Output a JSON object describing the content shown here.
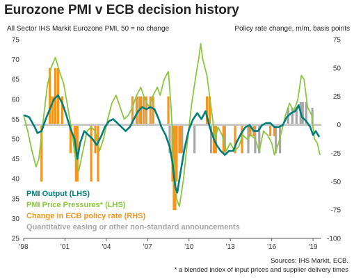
{
  "chart_data": {
    "type": "line",
    "title": "Eurozone PMI v ECB decision history",
    "left_axis_label": "All Sector IHS Markit Eurozone PMI, 50 = no change",
    "right_axis_label": "Policy rate change, m/m, basis points",
    "left_ylim": [
      25,
      75
    ],
    "left_yticks": [
      25,
      30,
      35,
      40,
      45,
      50,
      55,
      60,
      65,
      70,
      75
    ],
    "right_ylim": [
      -100,
      75
    ],
    "right_yticks": [
      -100,
      -75,
      -50,
      -25,
      0,
      25,
      50,
      75
    ],
    "xlim": [
      1998,
      2019.6
    ],
    "x_ticks": [
      {
        "x": 1998,
        "label": "'98"
      },
      {
        "x": 2001,
        "label": "'01"
      },
      {
        "x": 2004,
        "label": "'04"
      },
      {
        "x": 2007,
        "label": "'07"
      },
      {
        "x": 2010,
        "label": "'10"
      },
      {
        "x": 2013,
        "label": "'13"
      },
      {
        "x": 2016,
        "label": "'16"
      },
      {
        "x": 2019,
        "label": "'19"
      }
    ],
    "grid": false,
    "legend_position": "bottom-left",
    "series": [
      {
        "name": "PMI Output (LHS)",
        "axis": "left",
        "color": "#007e7a",
        "points": [
          [
            1998.0,
            56
          ],
          [
            1998.4,
            55.5
          ],
          [
            1998.8,
            53
          ],
          [
            1999.0,
            51.5
          ],
          [
            1999.3,
            52
          ],
          [
            1999.6,
            55
          ],
          [
            1999.9,
            57.5
          ],
          [
            2000.2,
            60
          ],
          [
            2000.5,
            61
          ],
          [
            2000.8,
            59
          ],
          [
            2001.1,
            56
          ],
          [
            2001.4,
            52.5
          ],
          [
            2001.7,
            50
          ],
          [
            2001.9,
            45
          ],
          [
            2002.1,
            49
          ],
          [
            2002.4,
            52
          ],
          [
            2002.7,
            51
          ],
          [
            2003.0,
            50
          ],
          [
            2003.3,
            48.5
          ],
          [
            2003.6,
            50.5
          ],
          [
            2003.9,
            53
          ],
          [
            2004.2,
            54.5
          ],
          [
            2004.5,
            55
          ],
          [
            2004.8,
            54
          ],
          [
            2005.1,
            53
          ],
          [
            2005.4,
            52
          ],
          [
            2005.7,
            53
          ],
          [
            2006.0,
            55
          ],
          [
            2006.3,
            57
          ],
          [
            2006.6,
            58
          ],
          [
            2006.9,
            57.5
          ],
          [
            2007.2,
            58
          ],
          [
            2007.5,
            57.5
          ],
          [
            2007.8,
            55
          ],
          [
            2008.0,
            53
          ],
          [
            2008.3,
            51
          ],
          [
            2008.6,
            48
          ],
          [
            2008.8,
            44
          ],
          [
            2009.0,
            38
          ],
          [
            2009.15,
            36.5
          ],
          [
            2009.4,
            42
          ],
          [
            2009.7,
            48
          ],
          [
            2010.0,
            52.5
          ],
          [
            2010.3,
            55
          ],
          [
            2010.6,
            56.5
          ],
          [
            2010.9,
            55
          ],
          [
            2011.2,
            57
          ],
          [
            2011.5,
            53
          ],
          [
            2011.8,
            50
          ],
          [
            2012.0,
            48.5
          ],
          [
            2012.3,
            47
          ],
          [
            2012.6,
            46
          ],
          [
            2012.9,
            47
          ],
          [
            2013.2,
            47
          ],
          [
            2013.5,
            49.5
          ],
          [
            2013.8,
            51.5
          ],
          [
            2014.1,
            53
          ],
          [
            2014.4,
            53.5
          ],
          [
            2014.7,
            52
          ],
          [
            2015.0,
            52
          ],
          [
            2015.3,
            53.5
          ],
          [
            2015.6,
            54
          ],
          [
            2015.9,
            54
          ],
          [
            2016.2,
            53
          ],
          [
            2016.5,
            53
          ],
          [
            2016.8,
            53.5
          ],
          [
            2017.1,
            55.5
          ],
          [
            2017.4,
            56.5
          ],
          [
            2017.7,
            57
          ],
          [
            2017.95,
            58.5
          ],
          [
            2018.2,
            55.5
          ],
          [
            2018.5,
            54.5
          ],
          [
            2018.8,
            53
          ],
          [
            2019.0,
            51
          ],
          [
            2019.2,
            52
          ],
          [
            2019.45,
            50.5
          ]
        ]
      },
      {
        "name": "PMI Price Pressures* (LHS)",
        "axis": "left",
        "color": "#8cc63f",
        "points": [
          [
            1998.0,
            56
          ],
          [
            1998.3,
            52
          ],
          [
            1998.6,
            47
          ],
          [
            1998.9,
            43
          ],
          [
            1999.1,
            45
          ],
          [
            1999.4,
            54
          ],
          [
            1999.7,
            63
          ],
          [
            2000.0,
            68
          ],
          [
            2000.3,
            70.5
          ],
          [
            2000.6,
            67
          ],
          [
            2000.9,
            64
          ],
          [
            2001.2,
            58
          ],
          [
            2001.5,
            52
          ],
          [
            2001.8,
            44
          ],
          [
            2002.0,
            42
          ],
          [
            2002.3,
            47
          ],
          [
            2002.6,
            52
          ],
          [
            2002.9,
            53
          ],
          [
            2003.2,
            52
          ],
          [
            2003.5,
            47
          ],
          [
            2003.8,
            50
          ],
          [
            2004.1,
            55
          ],
          [
            2004.4,
            59
          ],
          [
            2004.7,
            61
          ],
          [
            2005.0,
            58
          ],
          [
            2005.3,
            55
          ],
          [
            2005.6,
            56
          ],
          [
            2005.9,
            58
          ],
          [
            2006.2,
            61
          ],
          [
            2006.5,
            63
          ],
          [
            2006.8,
            60
          ],
          [
            2007.1,
            58
          ],
          [
            2007.4,
            61
          ],
          [
            2007.7,
            63
          ],
          [
            2007.9,
            61
          ],
          [
            2008.2,
            65
          ],
          [
            2008.5,
            67
          ],
          [
            2008.7,
            58
          ],
          [
            2008.9,
            44
          ],
          [
            2009.1,
            35
          ],
          [
            2009.3,
            33
          ],
          [
            2009.6,
            40
          ],
          [
            2009.9,
            50
          ],
          [
            2010.2,
            59
          ],
          [
            2010.5,
            66
          ],
          [
            2010.7,
            70
          ],
          [
            2010.85,
            74
          ],
          [
            2011.0,
            70
          ],
          [
            2011.3,
            66
          ],
          [
            2011.6,
            58
          ],
          [
            2011.9,
            50
          ],
          [
            2012.1,
            53
          ],
          [
            2012.4,
            51
          ],
          [
            2012.7,
            47
          ],
          [
            2013.0,
            49
          ],
          [
            2013.3,
            47
          ],
          [
            2013.6,
            48
          ],
          [
            2013.9,
            51
          ],
          [
            2014.2,
            50
          ],
          [
            2014.5,
            51
          ],
          [
            2014.8,
            50
          ],
          [
            2015.1,
            47
          ],
          [
            2015.4,
            52
          ],
          [
            2015.7,
            51
          ],
          [
            2016.0,
            49
          ],
          [
            2016.2,
            46
          ],
          [
            2016.5,
            49
          ],
          [
            2016.8,
            53
          ],
          [
            2017.0,
            56
          ],
          [
            2017.3,
            59
          ],
          [
            2017.6,
            57
          ],
          [
            2017.9,
            60
          ],
          [
            2018.15,
            66
          ],
          [
            2018.35,
            65
          ],
          [
            2018.6,
            58
          ],
          [
            2018.9,
            56
          ],
          [
            2019.1,
            50
          ],
          [
            2019.3,
            49
          ],
          [
            2019.5,
            46
          ]
        ]
      }
    ],
    "bar_series": [
      {
        "name": "Change in ECB policy rate (RHS)",
        "axis": "right",
        "color": "#f7941d",
        "bars": [
          [
            1999.3,
            -50
          ],
          [
            1999.9,
            50
          ],
          [
            2000.1,
            25
          ],
          [
            2000.3,
            50
          ],
          [
            2000.5,
            50
          ],
          [
            2000.8,
            25
          ],
          [
            2001.4,
            -25
          ],
          [
            2001.7,
            -25
          ],
          [
            2001.8,
            -50
          ],
          [
            2001.9,
            -50
          ],
          [
            2002.9,
            -50
          ],
          [
            2003.2,
            -25
          ],
          [
            2003.4,
            -50
          ],
          [
            2005.9,
            25
          ],
          [
            2006.2,
            25
          ],
          [
            2006.4,
            25
          ],
          [
            2006.5,
            25
          ],
          [
            2006.7,
            25
          ],
          [
            2006.9,
            25
          ],
          [
            2007.2,
            25
          ],
          [
            2007.4,
            25
          ],
          [
            2008.5,
            25
          ],
          [
            2008.8,
            -50
          ],
          [
            2008.9,
            -75
          ],
          [
            2009.0,
            -75
          ],
          [
            2009.1,
            -50
          ],
          [
            2009.3,
            -25
          ],
          [
            2009.4,
            -25
          ],
          [
            2011.3,
            25
          ],
          [
            2011.5,
            25
          ],
          [
            2011.8,
            -25
          ],
          [
            2011.95,
            -25
          ],
          [
            2012.5,
            -25
          ],
          [
            2013.35,
            -25
          ],
          [
            2013.85,
            -25
          ],
          [
            2014.45,
            -10
          ],
          [
            2014.7,
            -10
          ],
          [
            2015.9,
            -10
          ],
          [
            2016.2,
            -10
          ]
        ]
      },
      {
        "name": "Quantitative easing or other non-standard announcements",
        "axis": "right",
        "color": "#a6a6a6",
        "bars": [
          [
            2008.6,
            -25
          ],
          [
            2009.5,
            -25
          ],
          [
            2010.4,
            -25
          ],
          [
            2011.6,
            -25
          ],
          [
            2012.6,
            -25
          ],
          [
            2014.3,
            -25
          ],
          [
            2014.8,
            -25
          ],
          [
            2015.1,
            -25
          ],
          [
            2016.3,
            -25
          ],
          [
            2016.6,
            -25
          ],
          [
            2017.2,
            15
          ],
          [
            2017.5,
            15
          ],
          [
            2017.8,
            15
          ],
          [
            2018.1,
            20
          ],
          [
            2018.25,
            20
          ],
          [
            2018.5,
            20
          ],
          [
            2018.95,
            15
          ]
        ]
      }
    ]
  },
  "footer": {
    "source": "Sources: IHS Markit, ECB.",
    "note": "* a blended index of input prices and supplier delivery times"
  }
}
